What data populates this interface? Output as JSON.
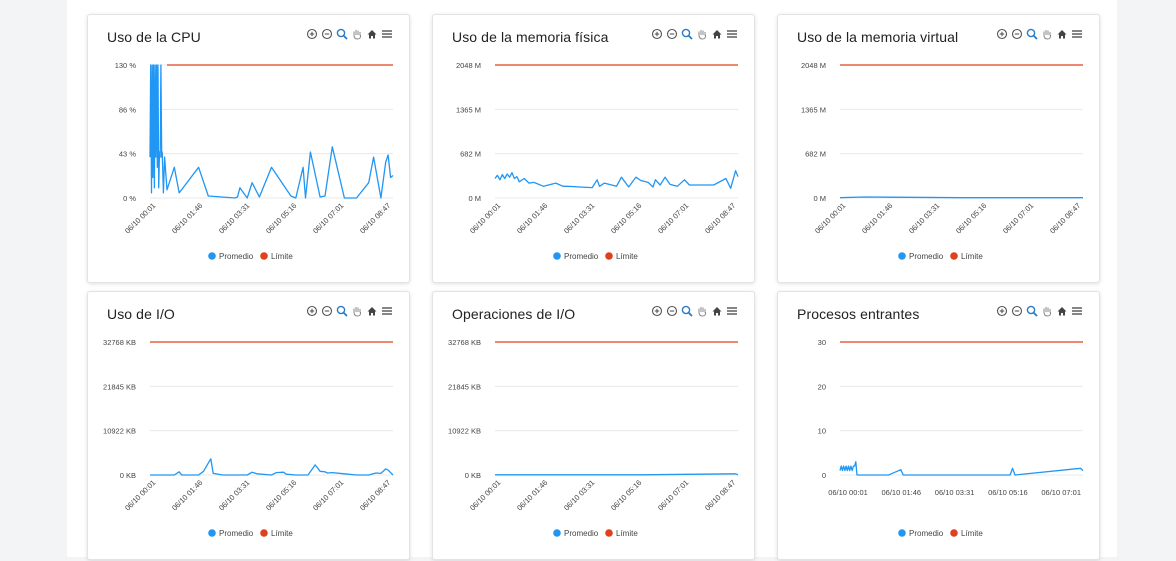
{
  "colors": {
    "promedio": "#2196f3",
    "limite": "#e0401e",
    "grid": "#e8e8e8"
  },
  "toolbar_icons": [
    "zoom-in-icon",
    "zoom-out-icon",
    "selection-zoom-icon",
    "pan-hand-icon",
    "home-reset-icon",
    "menu-icon"
  ],
  "legend": {
    "promedio": "Promedio",
    "limite": "Límite"
  },
  "chart_data": [
    {
      "type": "line",
      "title": "Uso de la CPU",
      "y_ticks": [
        "130 %",
        "86 %",
        "43 %",
        "0 %"
      ],
      "ylim": [
        0,
        130
      ],
      "x_tick_labels": [
        "06/10 00:01",
        "06/10 01:46",
        "06/10 03:31",
        "06/10 05:16",
        "06/10 07:01",
        "06/10 08:47"
      ],
      "x_label_rotated": true,
      "series": [
        {
          "name": "Promedio",
          "x": [
            0,
            0.003,
            0.006,
            0.009,
            0.012,
            0.015,
            0.018,
            0.021,
            0.024,
            0.027,
            0.03,
            0.033,
            0.036,
            0.039,
            0.042,
            0.045,
            0.048,
            0.05,
            0.055,
            0.06,
            0.07,
            0.1,
            0.12,
            0.2,
            0.24,
            0.35,
            0.36,
            0.37,
            0.4,
            0.42,
            0.45,
            0.5,
            0.58,
            0.6,
            0.63,
            0.64,
            0.66,
            0.7,
            0.72,
            0.75,
            0.8,
            0.85,
            0.9,
            0.92,
            0.95,
            0.97,
            0.98,
            0.99,
            1
          ],
          "y": [
            40,
            130,
            5,
            130,
            20,
            130,
            10,
            130,
            40,
            130,
            30,
            130,
            10,
            45,
            40,
            130,
            40,
            45,
            5,
            40,
            8,
            30,
            5,
            30,
            2,
            0,
            1,
            10,
            0,
            15,
            1,
            30,
            2,
            0,
            30,
            0,
            45,
            1,
            2,
            50,
            0,
            0,
            15,
            40,
            0,
            35,
            42,
            20,
            22
          ]
        },
        {
          "name": "Límite",
          "x": [
            0.07,
            1
          ],
          "y": [
            130,
            130
          ]
        }
      ]
    },
    {
      "type": "line",
      "title": "Uso de la memoria física",
      "y_ticks": [
        "2048 M",
        "1365 M",
        "682 M",
        "0 M"
      ],
      "ylim": [
        0,
        2048
      ],
      "x_tick_labels": [
        "06/10 00:01",
        "06/10 01:46",
        "06/10 03:31",
        "06/10 05:16",
        "06/10 07:01",
        "06/10 08:47"
      ],
      "x_label_rotated": true,
      "series": [
        {
          "name": "Promedio",
          "x": [
            0,
            0.01,
            0.02,
            0.03,
            0.04,
            0.05,
            0.06,
            0.07,
            0.08,
            0.09,
            0.1,
            0.12,
            0.14,
            0.16,
            0.2,
            0.25,
            0.28,
            0.3,
            0.35,
            0.4,
            0.42,
            0.43,
            0.45,
            0.5,
            0.52,
            0.55,
            0.58,
            0.6,
            0.63,
            0.65,
            0.66,
            0.68,
            0.7,
            0.72,
            0.75,
            0.78,
            0.8,
            0.85,
            0.9,
            0.95,
            0.97,
            0.99,
            1
          ],
          "y": [
            300,
            350,
            280,
            360,
            300,
            370,
            320,
            390,
            300,
            330,
            250,
            300,
            230,
            240,
            180,
            230,
            180,
            180,
            170,
            160,
            280,
            180,
            230,
            180,
            320,
            170,
            320,
            270,
            240,
            170,
            280,
            200,
            320,
            210,
            180,
            280,
            200,
            200,
            200,
            300,
            150,
            420,
            330
          ]
        },
        {
          "name": "Límite",
          "x": [
            0,
            1
          ],
          "y": [
            2048,
            2048
          ]
        }
      ]
    },
    {
      "type": "line",
      "title": "Uso de la memoria virtual",
      "y_ticks": [
        "2048 M",
        "1365 M",
        "682 M",
        "0 M"
      ],
      "ylim": [
        0,
        2048
      ],
      "x_tick_labels": [
        "06/10 00:01",
        "06/10 01:46",
        "06/10 03:31",
        "06/10 05:16",
        "06/10 07:01",
        "06/10 08:47"
      ],
      "x_label_rotated": true,
      "series": [
        {
          "name": "Promedio",
          "x": [
            0,
            0.1,
            0.5,
            1
          ],
          "y": [
            5,
            15,
            5,
            5
          ]
        },
        {
          "name": "Límite",
          "x": [
            0,
            1
          ],
          "y": [
            2048,
            2048
          ]
        }
      ]
    },
    {
      "type": "line",
      "title": "Uso de I/O",
      "y_ticks": [
        "32768 KB",
        "21845 KB",
        "10922 KB",
        "0 KB"
      ],
      "ylim": [
        0,
        32768
      ],
      "x_tick_labels": [
        "06/10 00:01",
        "06/10 01:46",
        "06/10 03:31",
        "06/10 05:16",
        "06/10 07:01",
        "06/10 08:47"
      ],
      "x_label_rotated": true,
      "series": [
        {
          "name": "Promedio",
          "x": [
            0,
            0.1,
            0.12,
            0.13,
            0.2,
            0.22,
            0.25,
            0.26,
            0.3,
            0.4,
            0.42,
            0.44,
            0.5,
            0.52,
            0.55,
            0.56,
            0.6,
            0.65,
            0.68,
            0.7,
            0.72,
            0.73,
            0.75,
            0.8,
            0.85,
            0.9,
            0.93,
            0.95,
            0.97,
            0.98,
            1
          ],
          "y": [
            0,
            0,
            800,
            0,
            0,
            900,
            4000,
            400,
            0,
            0,
            700,
            300,
            0,
            600,
            700,
            200,
            0,
            0,
            2500,
            900,
            800,
            500,
            600,
            300,
            0,
            0,
            500,
            400,
            1500,
            1200,
            0
          ]
        },
        {
          "name": "Límite",
          "x": [
            0,
            1
          ],
          "y": [
            32768,
            32768
          ]
        }
      ]
    },
    {
      "type": "line",
      "title": "Operaciones de I/O",
      "y_ticks": [
        "32768 KB",
        "21845 KB",
        "10922 KB",
        "0 KB"
      ],
      "ylim": [
        0,
        32768
      ],
      "x_tick_labels": [
        "06/10 00:01",
        "06/10 01:46",
        "06/10 03:31",
        "06/10 05:16",
        "06/10 07:01",
        "06/10 08:47"
      ],
      "x_label_rotated": true,
      "series": [
        {
          "name": "Promedio",
          "x": [
            0,
            0.3,
            0.6,
            0.99,
            1
          ],
          "y": [
            40,
            40,
            60,
            300,
            40
          ]
        },
        {
          "name": "Límite",
          "x": [
            0,
            1
          ],
          "y": [
            32768,
            32768
          ]
        }
      ]
    },
    {
      "type": "line",
      "title": "Procesos entrantes",
      "y_ticks": [
        "30",
        "20",
        "10",
        "0"
      ],
      "ylim": [
        0,
        30
      ],
      "x_tick_labels": [
        "06/10 00:01",
        "06/10 01:46",
        "06/10 03:31",
        "06/10 05:16",
        "06/10 07:01"
      ],
      "x_label_rotated": false,
      "series": [
        {
          "name": "Promedio",
          "x": [
            0,
            0.005,
            0.01,
            0.015,
            0.02,
            0.025,
            0.03,
            0.035,
            0.04,
            0.045,
            0.05,
            0.055,
            0.06,
            0.065,
            0.07,
            0.2,
            0.25,
            0.26,
            0.7,
            0.71,
            0.72,
            0.99,
            1
          ],
          "y": [
            1,
            2,
            1,
            2,
            1,
            2,
            1,
            2,
            1,
            2,
            1,
            2,
            2,
            3,
            0,
            0,
            1.2,
            0,
            0,
            1.5,
            0,
            1.5,
            1
          ]
        },
        {
          "name": "Límite",
          "x": [
            0,
            1
          ],
          "y": [
            30,
            30
          ]
        }
      ]
    }
  ]
}
